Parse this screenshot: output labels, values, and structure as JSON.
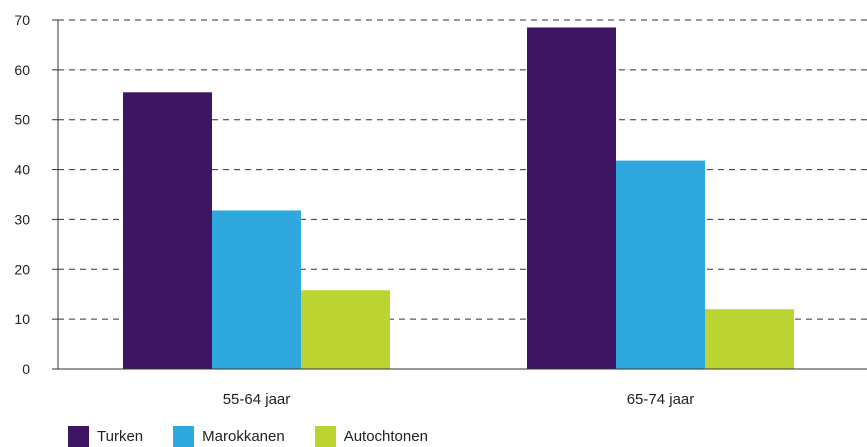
{
  "chart_data": {
    "type": "bar",
    "categories": [
      "55-64 jaar",
      "65-74 jaar"
    ],
    "series": [
      {
        "name": "Turken",
        "color": "#3d1560",
        "values": [
          55.5,
          68.5
        ]
      },
      {
        "name": "Marokkanen",
        "color": "#2fa9dd",
        "values": [
          31.8,
          41.8
        ]
      },
      {
        "name": "Autochtonen",
        "color": "#bcd431",
        "values": [
          15.8,
          12.0
        ]
      }
    ],
    "title": "",
    "xlabel": "",
    "ylabel": "",
    "ylim": [
      0,
      70
    ],
    "yticks": [
      0,
      10,
      20,
      30,
      40,
      50,
      60,
      70
    ],
    "grid": "dashed horizontal",
    "legend": "bottom-left"
  }
}
